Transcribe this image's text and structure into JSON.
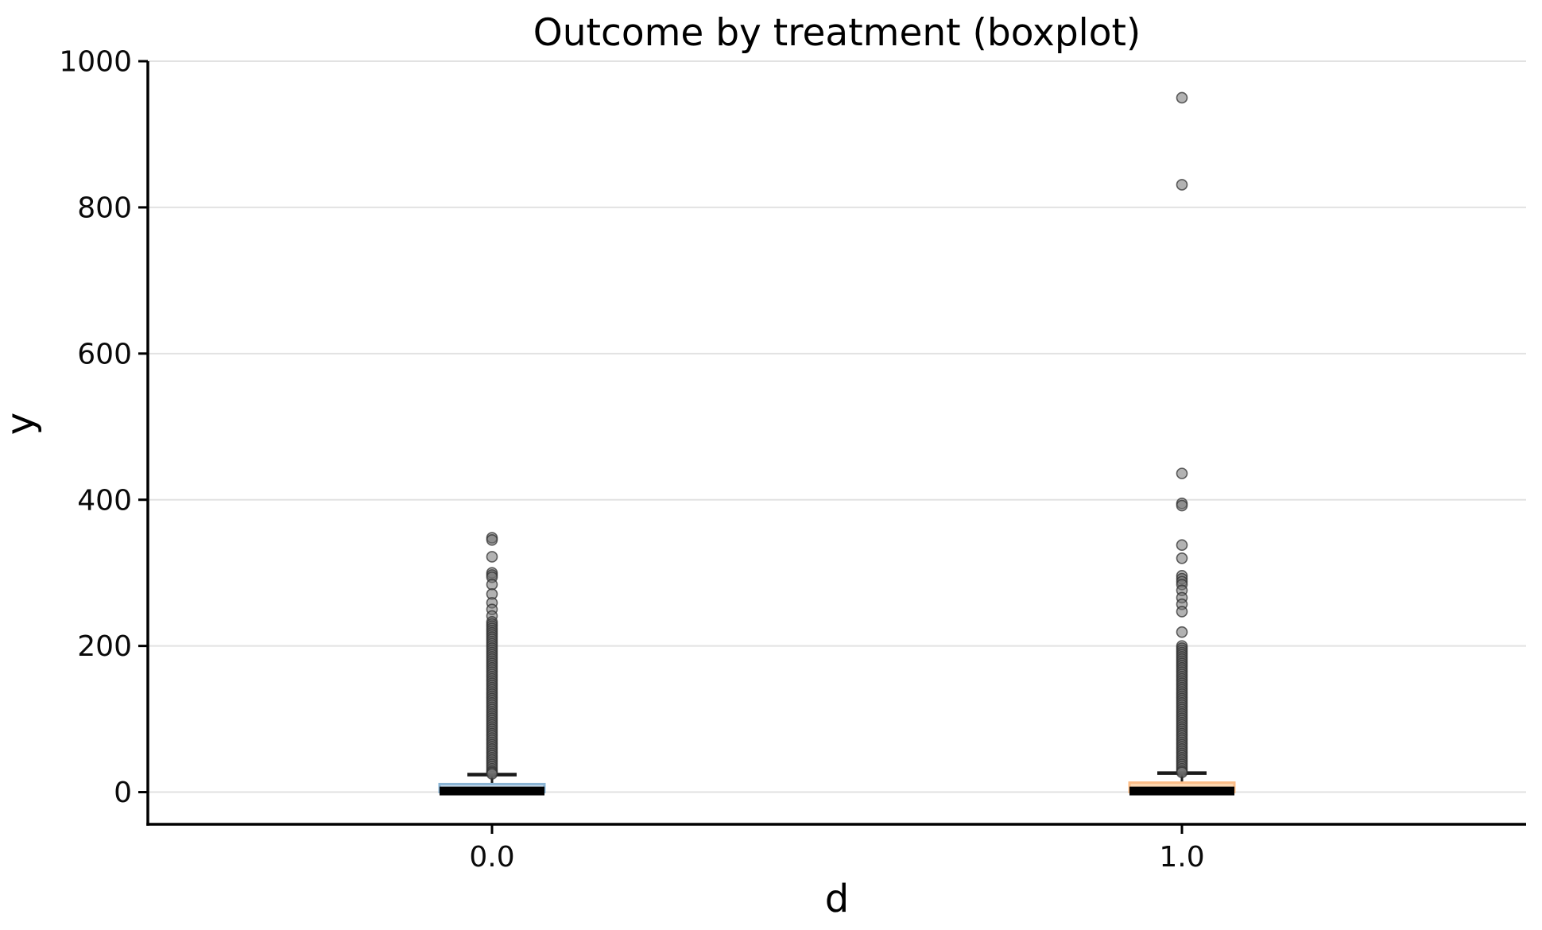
{
  "figure": {
    "background_color": "#ffffff"
  },
  "chart_data": {
    "type": "boxplot",
    "title": "Outcome by treatment (boxplot)",
    "xlabel": "d",
    "ylabel": "y",
    "categories": [
      "0.0",
      "1.0"
    ],
    "ylim": [
      -44,
      1000
    ],
    "yticks": [
      0,
      200,
      400,
      600,
      800,
      1000
    ],
    "ytick_labels": [
      "0",
      "200",
      "400",
      "600",
      "800",
      "1000"
    ],
    "grid": {
      "axis": "y",
      "color": "#e2e2e2",
      "linewidth": 2
    },
    "legend": "none",
    "spines": {
      "left": true,
      "bottom": true,
      "top": false,
      "right": false,
      "color": "#000000"
    },
    "whisker_color": "#1a1a1a",
    "median_color": "#000000",
    "flier_style": {
      "shape": "circle",
      "fill": "#737373",
      "fill_opacity": 0.55,
      "edge": "#2f2f2f",
      "edge_opacity": 0.75
    },
    "groups": [
      {
        "category": "0.0",
        "position": 0,
        "box_fill": "#c9dcec",
        "box_edge": "#8ab4d4",
        "q1": 0,
        "median": 1.5,
        "q3": 11,
        "whisker_low": 0,
        "whisker_high": 24,
        "outliers": [
          348,
          345,
          322,
          300,
          297,
          294,
          284,
          271,
          259,
          250,
          241,
          233,
          230,
          227,
          224,
          221,
          218,
          215,
          212,
          209,
          206,
          203,
          200,
          197,
          194,
          191,
          188,
          185,
          182,
          179,
          176,
          173,
          170,
          167,
          164,
          161,
          158,
          155,
          152,
          149,
          146,
          143,
          140,
          137,
          134,
          131,
          128,
          125,
          122,
          119,
          116,
          113,
          110,
          107,
          104,
          101,
          98,
          95,
          92,
          89,
          86,
          83,
          80,
          77,
          74,
          71,
          68,
          65,
          62,
          59,
          56,
          53,
          50,
          47,
          44,
          41,
          38,
          35,
          32,
          29,
          27,
          25
        ]
      },
      {
        "category": "1.0",
        "position": 1,
        "box_fill": "#fdd8b2",
        "box_edge": "#fcbd87",
        "q1": 0,
        "median": 1.5,
        "q3": 13,
        "whisker_low": 0,
        "whisker_high": 26,
        "outliers": [
          950,
          831,
          436,
          395,
          392,
          338,
          320,
          296,
          292,
          288,
          284,
          276,
          266,
          257,
          247,
          219,
          200,
          197,
          194,
          191,
          188,
          185,
          182,
          179,
          176,
          173,
          170,
          167,
          164,
          161,
          158,
          155,
          152,
          149,
          146,
          143,
          140,
          137,
          134,
          131,
          128,
          125,
          122,
          119,
          116,
          113,
          110,
          107,
          104,
          101,
          98,
          95,
          92,
          89,
          86,
          83,
          80,
          77,
          74,
          71,
          68,
          65,
          62,
          59,
          56,
          53,
          50,
          47,
          44,
          41,
          38,
          35,
          32,
          29,
          27
        ]
      }
    ]
  }
}
